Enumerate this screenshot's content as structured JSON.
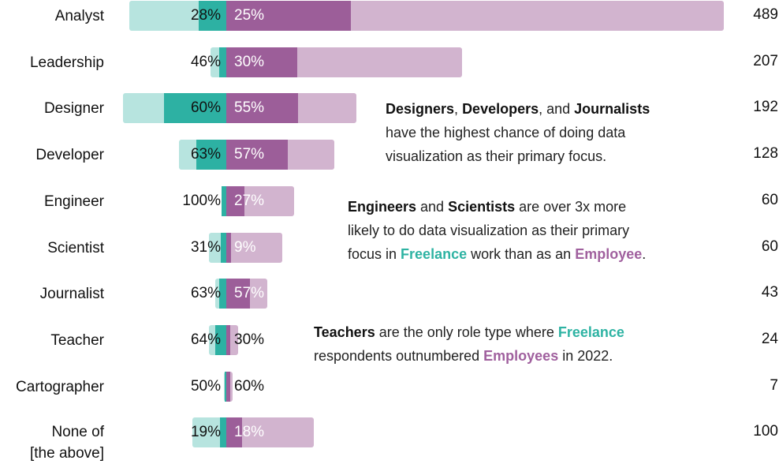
{
  "chart_data": {
    "type": "bar",
    "subtype": "diverging stacked bar",
    "categories": [
      "Analyst",
      "Leadership",
      "Designer",
      "Developer",
      "Engineer",
      "Scientist",
      "Journalist",
      "Teacher",
      "Cartographer",
      "None of [the above]"
    ],
    "series": [
      {
        "name": "Freelance",
        "total": [
          80,
          13,
          85,
          39,
          4,
          14,
          9,
          14,
          2,
          28
        ],
        "primary_focus_pct": [
          28,
          46,
          60,
          63,
          100,
          31,
          63,
          64,
          50,
          19
        ]
      },
      {
        "name": "Employee",
        "total": [
          409,
          194,
          107,
          89,
          56,
          46,
          34,
          10,
          5,
          72
        ],
        "primary_focus_pct": [
          25,
          30,
          55,
          57,
          27,
          9,
          57,
          30,
          60,
          18
        ]
      }
    ],
    "totals": [
      489,
      207,
      192,
      128,
      60,
      60,
      43,
      24,
      7,
      100
    ],
    "colors": {
      "freelance_light": "#b7e4df",
      "freelance_dark": "#2db1a3",
      "employee_dark": "#9c5e99",
      "employee_light": "#d2b4cf"
    }
  },
  "annotations": [
    {
      "lines": [
        [
          {
            "t": "Designers",
            "s": "b"
          },
          {
            "t": ", "
          },
          {
            "t": "Developers",
            "s": "b"
          },
          {
            "t": ", and "
          },
          {
            "t": "Journalists",
            "s": "b"
          }
        ],
        [
          {
            "t": "have the highest chance of doing data"
          }
        ],
        [
          {
            "t": "visualization as their primary focus."
          }
        ]
      ]
    },
    {
      "lines": [
        [
          {
            "t": "Engineers",
            "s": "b"
          },
          {
            "t": " and "
          },
          {
            "t": "Scientists",
            "s": "b"
          },
          {
            "t": " are over 3x more"
          }
        ],
        [
          {
            "t": "likely to do data visualization as their primary"
          }
        ],
        [
          {
            "t": "focus in "
          },
          {
            "t": "Freelance",
            "s": "t"
          },
          {
            "t": " work than as an "
          },
          {
            "t": "Employee",
            "s": "p"
          },
          {
            "t": "."
          }
        ]
      ]
    },
    {
      "lines": [
        [
          {
            "t": "Teachers",
            "s": "b"
          },
          {
            "t": " are the only role type where "
          },
          {
            "t": "Freelance",
            "s": "t"
          }
        ],
        [
          {
            "t": "respondents outnumbered "
          },
          {
            "t": "Employees",
            "s": "p"
          },
          {
            "t": " in 2022."
          }
        ]
      ]
    }
  ]
}
